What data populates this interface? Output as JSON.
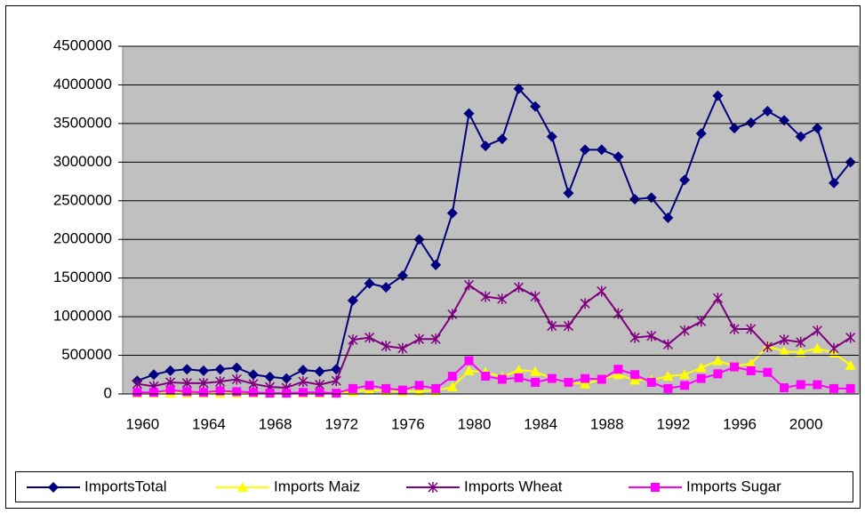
{
  "chart_data": {
    "type": "line",
    "categories": [
      "1960",
      null,
      null,
      null,
      "1964",
      null,
      null,
      null,
      "1968",
      null,
      null,
      null,
      "1972",
      null,
      null,
      null,
      "1976",
      null,
      null,
      null,
      "1980",
      null,
      null,
      null,
      "1984",
      null,
      null,
      null,
      "1988",
      null,
      null,
      null,
      "1992",
      null,
      null,
      null,
      "1996",
      null,
      null,
      null,
      "2000",
      null,
      null,
      null
    ],
    "ylim": [
      0,
      4500000
    ],
    "yticks": [
      0,
      500000,
      1000000,
      1500000,
      2000000,
      2500000,
      3000000,
      3500000,
      4000000,
      4500000
    ],
    "grid": true,
    "legend": "bottom",
    "series": [
      {
        "name": "ImportsTotal",
        "color": "#000080",
        "marker": "diamond",
        "values": [
          170000,
          250000,
          300000,
          320000,
          300000,
          320000,
          340000,
          250000,
          220000,
          200000,
          310000,
          290000,
          320000,
          1210000,
          1430000,
          1380000,
          1530000,
          2000000,
          1670000,
          2340000,
          3630000,
          3210000,
          3300000,
          3950000,
          3720000,
          3330000,
          2600000,
          3160000,
          3160000,
          3070000,
          2520000,
          2540000,
          2280000,
          2770000,
          3370000,
          3860000,
          3440000,
          3510000,
          3660000,
          3540000,
          3330000,
          3440000,
          2730000,
          3000000
        ]
      },
      {
        "name": "Imports Maiz",
        "color": "#ffff00",
        "marker": "triangle",
        "values": [
          10000,
          10000,
          10000,
          10000,
          10000,
          10000,
          10000,
          10000,
          10000,
          10000,
          10000,
          10000,
          10000,
          30000,
          50000,
          40000,
          30000,
          40000,
          40000,
          90000,
          300000,
          280000,
          220000,
          310000,
          290000,
          200000,
          150000,
          130000,
          190000,
          250000,
          180000,
          180000,
          230000,
          250000,
          340000,
          430000,
          360000,
          390000,
          620000,
          550000,
          540000,
          590000,
          530000,
          370000
        ]
      },
      {
        "name": "Imports Wheat",
        "color": "#800080",
        "marker": "star",
        "values": [
          130000,
          100000,
          150000,
          140000,
          140000,
          160000,
          190000,
          130000,
          90000,
          80000,
          160000,
          120000,
          170000,
          700000,
          730000,
          620000,
          590000,
          710000,
          710000,
          1030000,
          1410000,
          1260000,
          1230000,
          1380000,
          1260000,
          880000,
          880000,
          1170000,
          1330000,
          1040000,
          730000,
          750000,
          640000,
          820000,
          940000,
          1240000,
          840000,
          840000,
          610000,
          700000,
          670000,
          820000,
          590000,
          730000
        ]
      },
      {
        "name": "Imports Sugar",
        "color": "#ff00ff",
        "marker": "square",
        "values": [
          20000,
          20000,
          50000,
          30000,
          20000,
          40000,
          30000,
          20000,
          10000,
          10000,
          20000,
          20000,
          10000,
          70000,
          110000,
          70000,
          50000,
          110000,
          70000,
          230000,
          430000,
          230000,
          190000,
          210000,
          150000,
          200000,
          150000,
          200000,
          190000,
          320000,
          250000,
          150000,
          70000,
          110000,
          200000,
          260000,
          350000,
          300000,
          280000,
          80000,
          120000,
          120000,
          70000,
          70000
        ]
      }
    ]
  }
}
